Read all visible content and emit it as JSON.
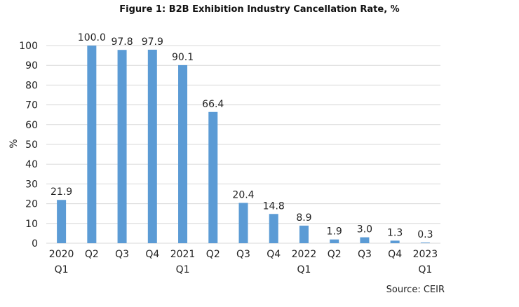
{
  "chart_data": {
    "type": "bar",
    "title": "Figure 1: B2B Exhibition Industry Cancellation Rate, %",
    "ylabel": "%",
    "xlabel": "",
    "categories": [
      [
        "2020",
        "Q1"
      ],
      [
        "Q2",
        ""
      ],
      [
        "Q3",
        ""
      ],
      [
        "Q4",
        ""
      ],
      [
        "2021",
        "Q1"
      ],
      [
        "Q2",
        ""
      ],
      [
        "Q3",
        ""
      ],
      [
        "Q4",
        ""
      ],
      [
        "2022",
        "Q1"
      ],
      [
        "Q2",
        ""
      ],
      [
        "Q3",
        ""
      ],
      [
        "Q4",
        ""
      ],
      [
        "2023",
        "Q1"
      ]
    ],
    "values": [
      21.9,
      100.0,
      97.8,
      97.9,
      90.1,
      66.4,
      20.4,
      14.8,
      8.9,
      1.9,
      3.0,
      1.3,
      0.3
    ],
    "value_labels": [
      "21.9",
      "100.0",
      "97.8",
      "97.9",
      "90.1",
      "66.4",
      "20.4",
      "14.8",
      "8.9",
      "1.9",
      "3.0",
      "1.3",
      "0.3"
    ],
    "ylim": [
      0,
      100
    ],
    "yticks": [
      0,
      10,
      20,
      30,
      40,
      50,
      60,
      70,
      80,
      90,
      100
    ],
    "grid": true,
    "legend": "none",
    "bar_color": "#5b9bd5",
    "grid_color": "#d9d9d9",
    "source": "Source: CEIR"
  }
}
